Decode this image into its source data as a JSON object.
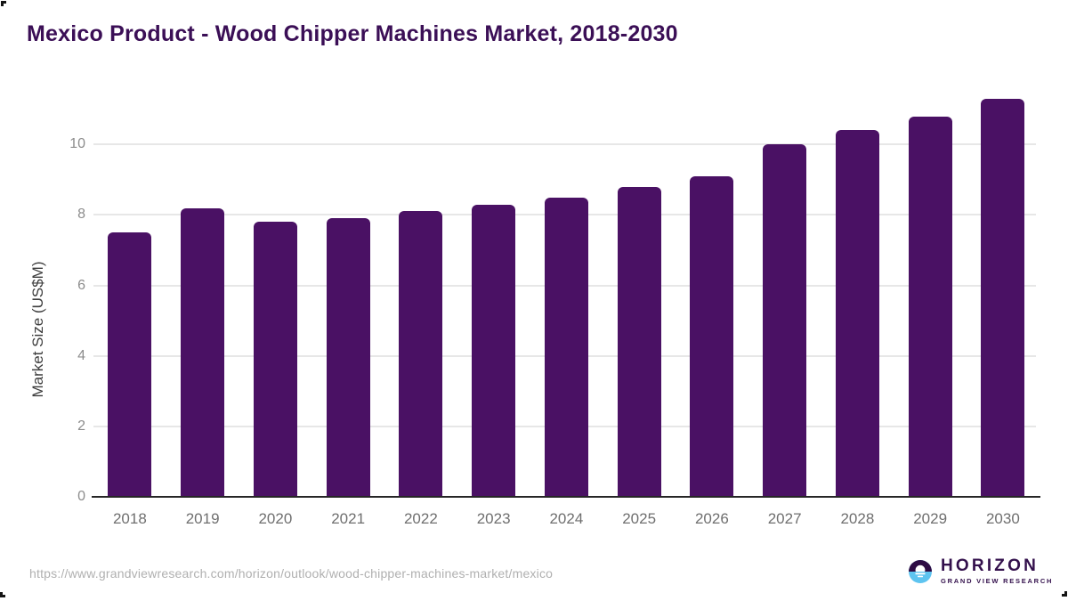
{
  "title": "Mexico Product - Wood Chipper Machines Market, 2018-2030",
  "footer": {
    "source_url": "https://www.grandviewresearch.com/horizon/outlook/wood-chipper-machines-market/mexico",
    "logo": {
      "name": "HORIZON",
      "subtitle": "GRAND VIEW RESEARCH"
    }
  },
  "colors": {
    "title": "#3b0f56",
    "bar": "#4a1164",
    "gridline": "#e7e7e7",
    "axis_line": "#262626",
    "y_tick_label": "#8c8c8c",
    "x_tick_label": "#6f6f6f",
    "y_axis_title": "#3d3d3d",
    "source_url": "#b0b0b0",
    "logo_purple": "#33104c",
    "logo_dark_half": "#2d0b44",
    "logo_blue_half": "#5ec4f0"
  },
  "chart_data": {
    "type": "bar",
    "title": "Mexico Product - Wood Chipper Machines Market, 2018-2030",
    "categories": [
      "2018",
      "2019",
      "2020",
      "2021",
      "2022",
      "2023",
      "2024",
      "2025",
      "2026",
      "2027",
      "2028",
      "2029",
      "2030"
    ],
    "values": [
      7.5,
      8.2,
      7.8,
      7.9,
      8.1,
      8.3,
      8.5,
      8.8,
      9.1,
      10.0,
      10.4,
      10.8,
      11.3
    ],
    "xlabel": "",
    "ylabel": "Market Size (US$M)",
    "ylim": [
      0,
      11.8
    ],
    "yticks": [
      0,
      2,
      4,
      6,
      8,
      10
    ],
    "grid": "horizontal",
    "legend": "none",
    "bar_color": "#4a1164"
  }
}
